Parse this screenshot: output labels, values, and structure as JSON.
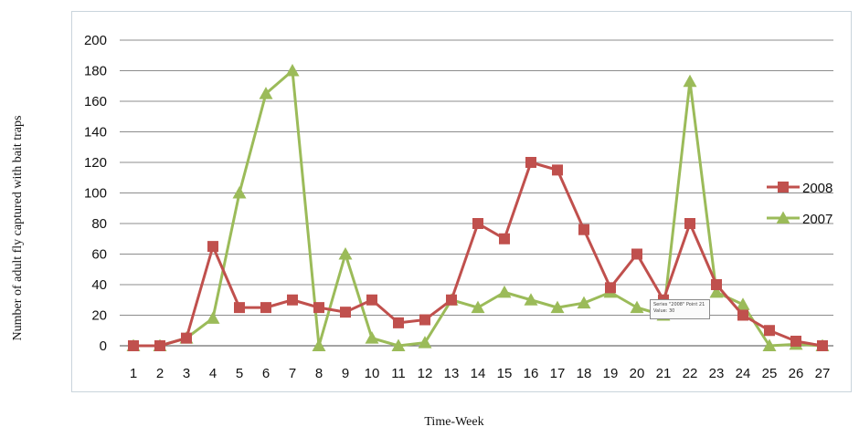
{
  "chart_data": {
    "type": "line",
    "xlabel": "Time-Week",
    "ylabel": "Number of adult fly captured with bait traps",
    "ylim": [
      0,
      200
    ],
    "yticks": [
      "0",
      "20",
      "40",
      "60",
      "80",
      "100",
      "120",
      "140",
      "160",
      "180",
      "200"
    ],
    "categories": [
      "1",
      "2",
      "3",
      "4",
      "5",
      "6",
      "7",
      "8",
      "9",
      "10",
      "11",
      "12",
      "13",
      "14",
      "15",
      "16",
      "17",
      "18",
      "19",
      "20",
      "21",
      "22",
      "23",
      "24",
      "25",
      "26",
      "27"
    ],
    "grid": true,
    "legend_position": "right",
    "series": [
      {
        "name": "2008",
        "color": "#c0504d",
        "marker": "square",
        "values": [
          0,
          0,
          5,
          65,
          25,
          25,
          30,
          25,
          22,
          30,
          15,
          17,
          30,
          80,
          70,
          120,
          115,
          76,
          38,
          60,
          30,
          80,
          40,
          20,
          10,
          3,
          0
        ]
      },
      {
        "name": "2007",
        "color": "#9bbb59",
        "marker": "triangle",
        "values": [
          0,
          0,
          5,
          18,
          100,
          165,
          180,
          0,
          60,
          5,
          0,
          2,
          30,
          25,
          35,
          30,
          25,
          28,
          35,
          25,
          20,
          173,
          35,
          27,
          0,
          1,
          0
        ]
      }
    ],
    "tooltip": {
      "line1": "Series \"2008\" Point 21",
      "line2": "Value: 30"
    }
  }
}
